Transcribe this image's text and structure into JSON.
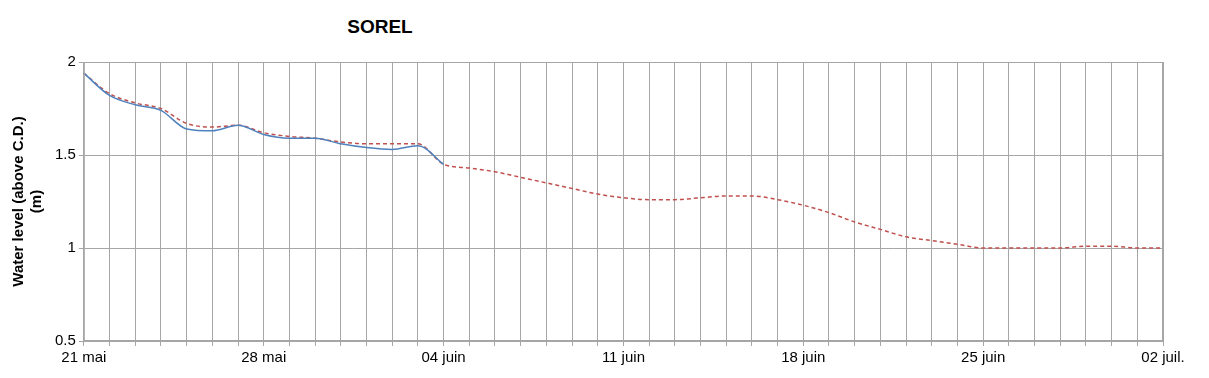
{
  "chart_data": {
    "type": "line",
    "title": "SOREL",
    "y_label": [
      "Water level (above C.D.)",
      "(m)"
    ],
    "categories": [
      "21 mai",
      null,
      null,
      null,
      null,
      null,
      null,
      "28 mai",
      null,
      null,
      null,
      null,
      null,
      null,
      "04 juin",
      null,
      null,
      null,
      null,
      null,
      null,
      "11 juin",
      null,
      null,
      null,
      null,
      null,
      null,
      "18 juin",
      null,
      null,
      null,
      null,
      null,
      null,
      "25 juin",
      null,
      null,
      null,
      null,
      null,
      null,
      "02 juil."
    ],
    "series": [
      {
        "color": "#4f81bd",
        "line_style": "solid",
        "values": [
          1.94,
          1.82,
          1.77,
          1.74,
          1.64,
          1.63,
          1.66,
          1.61,
          1.59,
          1.59,
          1.56,
          1.54,
          1.53,
          1.55,
          1.45,
          null,
          null,
          null,
          null,
          null,
          null,
          null,
          null,
          null,
          null,
          null,
          null,
          null,
          null,
          null,
          null,
          null,
          null,
          null,
          null,
          null,
          null,
          null,
          null,
          null,
          null,
          null,
          null
        ]
      },
      {
        "color": "#c0504d",
        "line_style": "dashed",
        "values": [
          1.94,
          1.83,
          1.78,
          1.75,
          1.67,
          1.65,
          1.66,
          1.62,
          1.6,
          1.59,
          1.57,
          1.56,
          1.56,
          1.56,
          1.45,
          1.43,
          1.41,
          1.38,
          1.35,
          1.32,
          1.29,
          1.27,
          1.26,
          1.26,
          1.27,
          1.28,
          1.28,
          1.26,
          1.23,
          1.19,
          1.14,
          1.1,
          1.06,
          1.04,
          1.02,
          1.0,
          1.0,
          1.0,
          1.0,
          1.01,
          1.01,
          1.0,
          1.0
        ]
      }
    ],
    "ylim": [
      0.5,
      2
    ],
    "yticks": [
      0.5,
      1,
      1.5,
      2
    ],
    "grid": true
  }
}
